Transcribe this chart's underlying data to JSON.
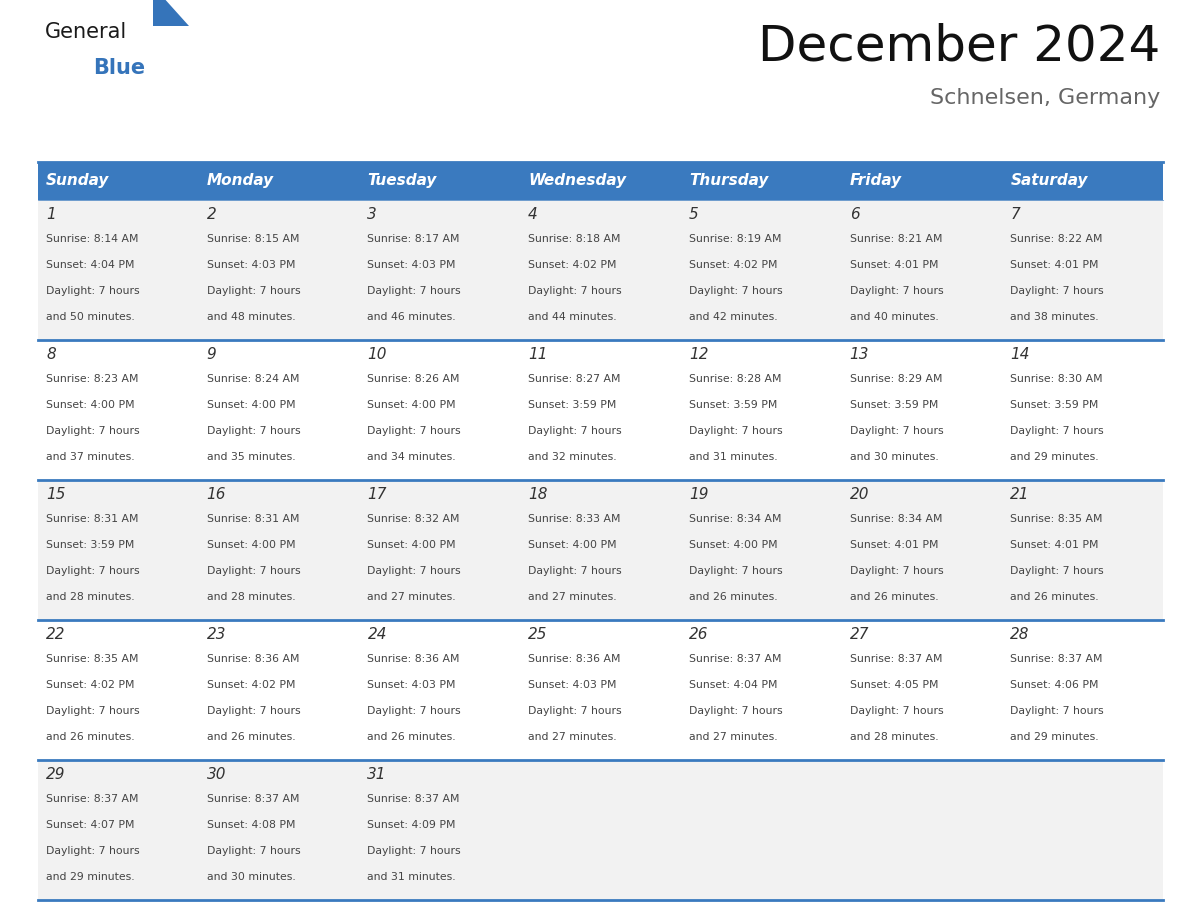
{
  "title": "December 2024",
  "subtitle": "Schnelsen, Germany",
  "header_color": "#3a7abf",
  "header_text_color": "#ffffff",
  "day_names": [
    "Sunday",
    "Monday",
    "Tuesday",
    "Wednesday",
    "Thursday",
    "Friday",
    "Saturday"
  ],
  "weeks": [
    [
      {
        "day": 1,
        "sunrise": "8:14 AM",
        "sunset": "4:04 PM",
        "daylight": "7 hours and 50 minutes"
      },
      {
        "day": 2,
        "sunrise": "8:15 AM",
        "sunset": "4:03 PM",
        "daylight": "7 hours and 48 minutes"
      },
      {
        "day": 3,
        "sunrise": "8:17 AM",
        "sunset": "4:03 PM",
        "daylight": "7 hours and 46 minutes"
      },
      {
        "day": 4,
        "sunrise": "8:18 AM",
        "sunset": "4:02 PM",
        "daylight": "7 hours and 44 minutes"
      },
      {
        "day": 5,
        "sunrise": "8:19 AM",
        "sunset": "4:02 PM",
        "daylight": "7 hours and 42 minutes"
      },
      {
        "day": 6,
        "sunrise": "8:21 AM",
        "sunset": "4:01 PM",
        "daylight": "7 hours and 40 minutes"
      },
      {
        "day": 7,
        "sunrise": "8:22 AM",
        "sunset": "4:01 PM",
        "daylight": "7 hours and 38 minutes"
      }
    ],
    [
      {
        "day": 8,
        "sunrise": "8:23 AM",
        "sunset": "4:00 PM",
        "daylight": "7 hours and 37 minutes"
      },
      {
        "day": 9,
        "sunrise": "8:24 AM",
        "sunset": "4:00 PM",
        "daylight": "7 hours and 35 minutes"
      },
      {
        "day": 10,
        "sunrise": "8:26 AM",
        "sunset": "4:00 PM",
        "daylight": "7 hours and 34 minutes"
      },
      {
        "day": 11,
        "sunrise": "8:27 AM",
        "sunset": "3:59 PM",
        "daylight": "7 hours and 32 minutes"
      },
      {
        "day": 12,
        "sunrise": "8:28 AM",
        "sunset": "3:59 PM",
        "daylight": "7 hours and 31 minutes"
      },
      {
        "day": 13,
        "sunrise": "8:29 AM",
        "sunset": "3:59 PM",
        "daylight": "7 hours and 30 minutes"
      },
      {
        "day": 14,
        "sunrise": "8:30 AM",
        "sunset": "3:59 PM",
        "daylight": "7 hours and 29 minutes"
      }
    ],
    [
      {
        "day": 15,
        "sunrise": "8:31 AM",
        "sunset": "3:59 PM",
        "daylight": "7 hours and 28 minutes"
      },
      {
        "day": 16,
        "sunrise": "8:31 AM",
        "sunset": "4:00 PM",
        "daylight": "7 hours and 28 minutes"
      },
      {
        "day": 17,
        "sunrise": "8:32 AM",
        "sunset": "4:00 PM",
        "daylight": "7 hours and 27 minutes"
      },
      {
        "day": 18,
        "sunrise": "8:33 AM",
        "sunset": "4:00 PM",
        "daylight": "7 hours and 27 minutes"
      },
      {
        "day": 19,
        "sunrise": "8:34 AM",
        "sunset": "4:00 PM",
        "daylight": "7 hours and 26 minutes"
      },
      {
        "day": 20,
        "sunrise": "8:34 AM",
        "sunset": "4:01 PM",
        "daylight": "7 hours and 26 minutes"
      },
      {
        "day": 21,
        "sunrise": "8:35 AM",
        "sunset": "4:01 PM",
        "daylight": "7 hours and 26 minutes"
      }
    ],
    [
      {
        "day": 22,
        "sunrise": "8:35 AM",
        "sunset": "4:02 PM",
        "daylight": "7 hours and 26 minutes"
      },
      {
        "day": 23,
        "sunrise": "8:36 AM",
        "sunset": "4:02 PM",
        "daylight": "7 hours and 26 minutes"
      },
      {
        "day": 24,
        "sunrise": "8:36 AM",
        "sunset": "4:03 PM",
        "daylight": "7 hours and 26 minutes"
      },
      {
        "day": 25,
        "sunrise": "8:36 AM",
        "sunset": "4:03 PM",
        "daylight": "7 hours and 27 minutes"
      },
      {
        "day": 26,
        "sunrise": "8:37 AM",
        "sunset": "4:04 PM",
        "daylight": "7 hours and 27 minutes"
      },
      {
        "day": 27,
        "sunrise": "8:37 AM",
        "sunset": "4:05 PM",
        "daylight": "7 hours and 28 minutes"
      },
      {
        "day": 28,
        "sunrise": "8:37 AM",
        "sunset": "4:06 PM",
        "daylight": "7 hours and 29 minutes"
      }
    ],
    [
      {
        "day": 29,
        "sunrise": "8:37 AM",
        "sunset": "4:07 PM",
        "daylight": "7 hours and 29 minutes"
      },
      {
        "day": 30,
        "sunrise": "8:37 AM",
        "sunset": "4:08 PM",
        "daylight": "7 hours and 30 minutes"
      },
      {
        "day": 31,
        "sunrise": "8:37 AM",
        "sunset": "4:09 PM",
        "daylight": "7 hours and 31 minutes"
      },
      null,
      null,
      null,
      null
    ]
  ],
  "cell_bg_even": "#f2f2f2",
  "cell_bg_odd": "#ffffff",
  "border_color": "#3a7abf",
  "text_color": "#444444",
  "day_num_color": "#333333",
  "logo_general_color": "#1a1a1a",
  "logo_blue_color": "#3574ba",
  "fig_width": 11.88,
  "fig_height": 9.18,
  "dpi": 100
}
